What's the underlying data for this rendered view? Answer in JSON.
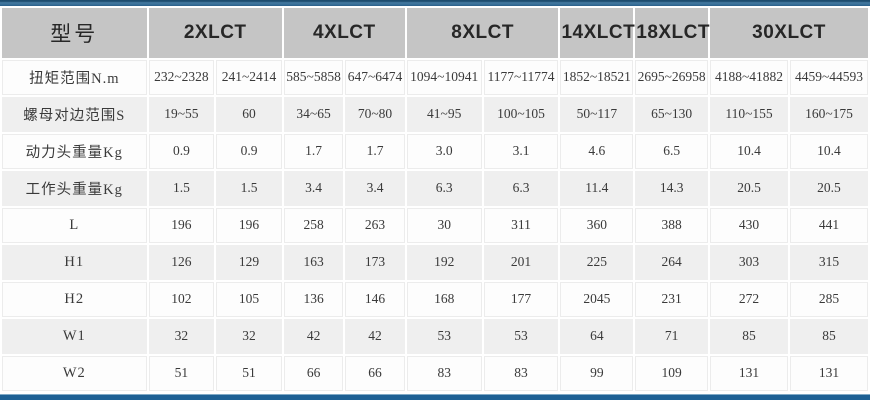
{
  "colors": {
    "top_bar_dark": "#1d4c6e",
    "top_bar_mid": "#44799f",
    "bottom_bar_blue": "#1d6094",
    "header_bg": "#c5c5c5",
    "row_gray_bg": "#efefef",
    "row_white_bg": "#fdfdfd",
    "text": "#3a3a3a"
  },
  "table": {
    "header": {
      "model_label": "型号",
      "groups": [
        {
          "label": "2XLCT",
          "span": 2
        },
        {
          "label": "4XLCT",
          "span": 2
        },
        {
          "label": "8XLCT",
          "span": 2
        },
        {
          "label": "14XLCT",
          "span": 1
        },
        {
          "label": "18XLCT",
          "span": 1
        },
        {
          "label": "30XLCT",
          "span": 2
        }
      ]
    },
    "rows": [
      {
        "label": "扭矩范围N.m",
        "values": [
          "232~2328",
          "241~2414",
          "585~5858",
          "647~6474",
          "1094~10941",
          "1177~11774",
          "1852~18521",
          "2695~26958",
          "4188~41882",
          "4459~44593"
        ]
      },
      {
        "label": "螺母对边范围S",
        "values": [
          "19~55",
          "60",
          "34~65",
          "70~80",
          "41~95",
          "100~105",
          "50~117",
          "65~130",
          "110~155",
          "160~175"
        ]
      },
      {
        "label": "动力头重量Kg",
        "values": [
          "0.9",
          "0.9",
          "1.7",
          "1.7",
          "3.0",
          "3.1",
          "4.6",
          "6.5",
          "10.4",
          "10.4"
        ]
      },
      {
        "label": "工作头重量Kg",
        "values": [
          "1.5",
          "1.5",
          "3.4",
          "3.4",
          "6.3",
          "6.3",
          "11.4",
          "14.3",
          "20.5",
          "20.5"
        ]
      },
      {
        "label": "L",
        "values": [
          "196",
          "196",
          "258",
          "263",
          "30",
          "311",
          "360",
          "388",
          "430",
          "441"
        ]
      },
      {
        "label": "H1",
        "values": [
          "126",
          "129",
          "163",
          "173",
          "192",
          "201",
          "225",
          "264",
          "303",
          "315"
        ]
      },
      {
        "label": "H2",
        "values": [
          "102",
          "105",
          "136",
          "146",
          "168",
          "177",
          "2045",
          "231",
          "272",
          "285"
        ]
      },
      {
        "label": "W1",
        "values": [
          "32",
          "32",
          "42",
          "42",
          "53",
          "53",
          "64",
          "71",
          "85",
          "85"
        ]
      },
      {
        "label": "W2",
        "values": [
          "51",
          "51",
          "66",
          "66",
          "83",
          "83",
          "99",
          "109",
          "131",
          "131"
        ]
      }
    ]
  }
}
